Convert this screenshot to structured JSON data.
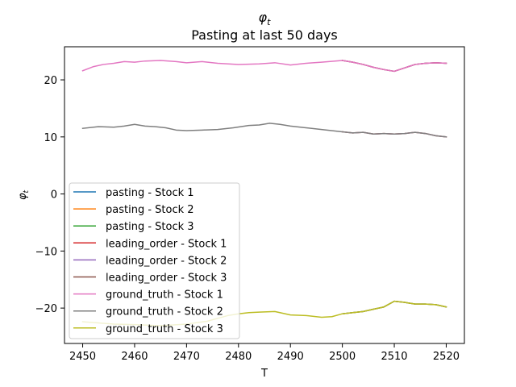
{
  "chart_data": {
    "type": "line",
    "title_symbol": "φ",
    "title_subscript": "t",
    "subtitle": "Pasting at last 50 days",
    "xlabel": "T",
    "ylabel_symbol": "φ",
    "ylabel_subscript": "t",
    "xlim": [
      2446.5,
      2523.5
    ],
    "ylim": [
      -26.2,
      25.8
    ],
    "xticks": [
      2450,
      2460,
      2470,
      2480,
      2490,
      2500,
      2510,
      2520
    ],
    "xtick_labels": [
      "2450",
      "2460",
      "2470",
      "2480",
      "2490",
      "2500",
      "2510",
      "2520"
    ],
    "yticks": [
      -20,
      -10,
      0,
      10,
      20
    ],
    "ytick_labels": [
      "−20",
      "−10",
      "0",
      "10",
      "20"
    ],
    "grid": false,
    "legend_position": "lower-left",
    "series": [
      {
        "name": "pasting - Stock 1",
        "color": "#1f77b4",
        "x": [
          2500,
          2502,
          2504,
          2506,
          2508,
          2510,
          2512,
          2514,
          2516,
          2518,
          2520
        ],
        "y": [
          23.4,
          23.1,
          22.7,
          22.2,
          21.8,
          21.5,
          22.1,
          22.7,
          22.9,
          23.0,
          22.9
        ]
      },
      {
        "name": "pasting - Stock 2",
        "color": "#ff7f0e",
        "x": [
          2500,
          2502,
          2504,
          2506,
          2508,
          2510,
          2512,
          2514,
          2516,
          2518,
          2520
        ],
        "y": [
          10.9,
          10.7,
          10.8,
          10.5,
          10.6,
          10.5,
          10.6,
          10.8,
          10.6,
          10.2,
          10.0
        ]
      },
      {
        "name": "pasting - Stock 3",
        "color": "#2ca02c",
        "x": [
          2500,
          2502,
          2504,
          2506,
          2508,
          2510,
          2512,
          2514,
          2516,
          2518,
          2520
        ],
        "y": [
          -21.0,
          -20.8,
          -20.6,
          -20.2,
          -19.8,
          -18.8,
          -19.0,
          -19.3,
          -19.3,
          -19.4,
          -19.8
        ]
      },
      {
        "name": "leading_order - Stock 1",
        "color": "#d62728",
        "x": [
          2500,
          2502,
          2504,
          2506,
          2508,
          2510,
          2512,
          2514,
          2516,
          2518,
          2520
        ],
        "y": [
          23.4,
          23.1,
          22.7,
          22.2,
          21.8,
          21.5,
          22.1,
          22.7,
          22.9,
          23.0,
          22.9
        ]
      },
      {
        "name": "leading_order - Stock 2",
        "color": "#9467bd",
        "x": [
          2500,
          2502,
          2504,
          2506,
          2508,
          2510,
          2512,
          2514,
          2516,
          2518,
          2520
        ],
        "y": [
          10.9,
          10.7,
          10.8,
          10.5,
          10.6,
          10.5,
          10.6,
          10.8,
          10.6,
          10.2,
          10.0
        ]
      },
      {
        "name": "leading_order - Stock 3",
        "color": "#8c564b",
        "x": [
          2500,
          2502,
          2504,
          2506,
          2508,
          2510,
          2512,
          2514,
          2516,
          2518,
          2520
        ],
        "y": [
          -21.0,
          -20.8,
          -20.6,
          -20.2,
          -19.8,
          -18.8,
          -19.0,
          -19.3,
          -19.3,
          -19.4,
          -19.8
        ]
      },
      {
        "name": "ground_truth - Stock 1",
        "color": "#e377c2",
        "x": [
          2450,
          2452,
          2454,
          2456,
          2458,
          2460,
          2462,
          2465,
          2468,
          2470,
          2473,
          2476,
          2480,
          2484,
          2487,
          2490,
          2493,
          2496,
          2500,
          2502,
          2504,
          2506,
          2508,
          2510,
          2512,
          2514,
          2516,
          2518,
          2520
        ],
        "y": [
          21.6,
          22.3,
          22.7,
          22.9,
          23.2,
          23.1,
          23.3,
          23.4,
          23.2,
          23.0,
          23.2,
          22.9,
          22.7,
          22.8,
          23.0,
          22.6,
          22.9,
          23.1,
          23.4,
          23.1,
          22.7,
          22.2,
          21.8,
          21.5,
          22.1,
          22.7,
          22.9,
          23.0,
          22.9
        ]
      },
      {
        "name": "ground_truth - Stock 2",
        "color": "#7f7f7f",
        "x": [
          2450,
          2453,
          2456,
          2458,
          2460,
          2462,
          2464,
          2466,
          2468,
          2470,
          2473,
          2476,
          2479,
          2482,
          2484,
          2486,
          2488,
          2490,
          2493,
          2496,
          2500,
          2502,
          2504,
          2506,
          2508,
          2510,
          2512,
          2514,
          2516,
          2518,
          2520
        ],
        "y": [
          11.5,
          11.8,
          11.7,
          11.9,
          12.2,
          11.9,
          11.8,
          11.6,
          11.2,
          11.1,
          11.2,
          11.3,
          11.6,
          12.0,
          12.1,
          12.4,
          12.2,
          11.9,
          11.6,
          11.3,
          10.9,
          10.7,
          10.8,
          10.5,
          10.6,
          10.5,
          10.6,
          10.8,
          10.6,
          10.2,
          10.0
        ]
      },
      {
        "name": "ground_truth - Stock 3",
        "color": "#bcbd22",
        "x": [
          2450,
          2453,
          2456,
          2460,
          2465,
          2470,
          2474,
          2478,
          2480,
          2482,
          2484,
          2487,
          2490,
          2493,
          2496,
          2498,
          2500,
          2502,
          2504,
          2506,
          2508,
          2510,
          2512,
          2514,
          2516,
          2518,
          2520
        ],
        "y": [
          -22.4,
          -22.6,
          -22.8,
          -22.9,
          -23.1,
          -22.8,
          -22.3,
          -21.3,
          -21.0,
          -20.8,
          -20.7,
          -20.6,
          -21.2,
          -21.3,
          -21.6,
          -21.5,
          -21.0,
          -20.8,
          -20.6,
          -20.2,
          -19.8,
          -18.8,
          -19.0,
          -19.3,
          -19.3,
          -19.4,
          -19.8
        ]
      }
    ]
  }
}
